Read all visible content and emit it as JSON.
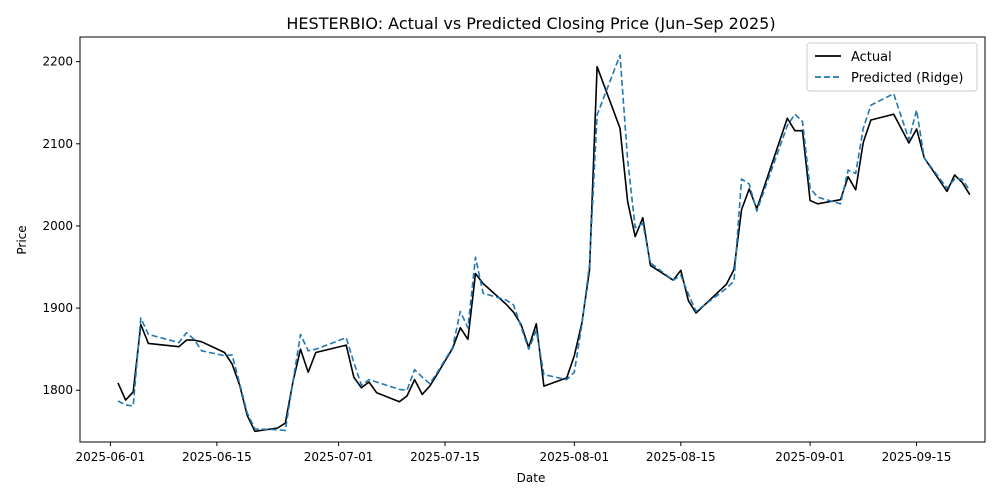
{
  "chart_data": {
    "type": "line",
    "title": "HESTERBIO: Actual vs Predicted Closing Price (Jun–Sep 2025)",
    "xlabel": "Date",
    "ylabel": "Price",
    "xlim": [
      "2025-05-28",
      "2025-09-24"
    ],
    "ylim": [
      1737,
      2230
    ],
    "x_ticks": [
      "2025-06-01",
      "2025-06-15",
      "2025-07-01",
      "2025-07-15",
      "2025-08-01",
      "2025-08-15",
      "2025-09-01",
      "2025-09-15"
    ],
    "y_ticks": [
      1800,
      1900,
      2000,
      2100,
      2200
    ],
    "grid": false,
    "legend": {
      "position": "top-right",
      "entries": [
        "Actual",
        "Predicted (Ridge)"
      ]
    },
    "series": [
      {
        "name": "Actual",
        "color": "#000000",
        "style": "solid",
        "points": [
          [
            "2025-06-02",
            1809
          ],
          [
            "2025-06-03",
            1788
          ],
          [
            "2025-06-04",
            1798
          ],
          [
            "2025-06-05",
            1880
          ],
          [
            "2025-06-06",
            1857
          ],
          [
            "2025-06-10",
            1853
          ],
          [
            "2025-06-11",
            1861
          ],
          [
            "2025-06-12",
            1861
          ],
          [
            "2025-06-13",
            1859
          ],
          [
            "2025-06-16",
            1846
          ],
          [
            "2025-06-17",
            1832
          ],
          [
            "2025-06-18",
            1806
          ],
          [
            "2025-06-19",
            1769
          ],
          [
            "2025-06-20",
            1750
          ],
          [
            "2025-06-23",
            1754
          ],
          [
            "2025-06-24",
            1760
          ],
          [
            "2025-06-25",
            1810
          ],
          [
            "2025-06-26",
            1850
          ],
          [
            "2025-06-27",
            1822
          ],
          [
            "2025-06-28",
            1846
          ],
          [
            "2025-07-02",
            1855
          ],
          [
            "2025-07-03",
            1816
          ],
          [
            "2025-07-04",
            1803
          ],
          [
            "2025-07-05",
            1810
          ],
          [
            "2025-07-06",
            1797
          ],
          [
            "2025-07-09",
            1786
          ],
          [
            "2025-07-10",
            1793
          ],
          [
            "2025-07-11",
            1813
          ],
          [
            "2025-07-12",
            1795
          ],
          [
            "2025-07-13",
            1805
          ],
          [
            "2025-07-14",
            1820
          ],
          [
            "2025-07-16",
            1851
          ],
          [
            "2025-07-17",
            1876
          ],
          [
            "2025-07-18",
            1862
          ],
          [
            "2025-07-19",
            1942
          ],
          [
            "2025-07-20",
            1930
          ],
          [
            "2025-07-23",
            1905
          ],
          [
            "2025-07-24",
            1895
          ],
          [
            "2025-07-25",
            1880
          ],
          [
            "2025-07-26",
            1852
          ],
          [
            "2025-07-27",
            1881
          ],
          [
            "2025-07-28",
            1805
          ],
          [
            "2025-07-31",
            1815
          ],
          [
            "2025-08-01",
            1842
          ],
          [
            "2025-08-02",
            1882
          ],
          [
            "2025-08-03",
            1946
          ],
          [
            "2025-08-04",
            2194
          ],
          [
            "2025-08-07",
            2119
          ],
          [
            "2025-08-08",
            2030
          ],
          [
            "2025-08-09",
            1987
          ],
          [
            "2025-08-10",
            2010
          ],
          [
            "2025-08-11",
            1952
          ],
          [
            "2025-08-14",
            1934
          ],
          [
            "2025-08-15",
            1946
          ],
          [
            "2025-08-16",
            1909
          ],
          [
            "2025-08-17",
            1894
          ],
          [
            "2025-08-21",
            1929
          ],
          [
            "2025-08-22",
            1947
          ],
          [
            "2025-08-23",
            2020
          ],
          [
            "2025-08-24",
            2045
          ],
          [
            "2025-08-25",
            2021
          ],
          [
            "2025-08-29",
            2131
          ],
          [
            "2025-08-30",
            2116
          ],
          [
            "2025-08-31",
            2116
          ],
          [
            "2025-09-01",
            2031
          ],
          [
            "2025-09-02",
            2027
          ],
          [
            "2025-09-05",
            2032
          ],
          [
            "2025-09-06",
            2060
          ],
          [
            "2025-09-07",
            2044
          ],
          [
            "2025-09-08",
            2102
          ],
          [
            "2025-09-09",
            2129
          ],
          [
            "2025-09-12",
            2136
          ],
          [
            "2025-09-14",
            2101
          ],
          [
            "2025-09-15",
            2118
          ],
          [
            "2025-09-16",
            2083
          ],
          [
            "2025-09-19",
            2042
          ],
          [
            "2025-09-20",
            2062
          ],
          [
            "2025-09-21",
            2053
          ],
          [
            "2025-09-22",
            2038
          ]
        ]
      },
      {
        "name": "Predicted (Ridge)",
        "color": "#1f77b4",
        "style": "dashed",
        "points": [
          [
            "2025-06-02",
            1787
          ],
          [
            "2025-06-03",
            1782
          ],
          [
            "2025-06-04",
            1781
          ],
          [
            "2025-06-05",
            1888
          ],
          [
            "2025-06-06",
            1868
          ],
          [
            "2025-06-10",
            1858
          ],
          [
            "2025-06-11",
            1870
          ],
          [
            "2025-06-12",
            1862
          ],
          [
            "2025-06-13",
            1848
          ],
          [
            "2025-06-16",
            1842
          ],
          [
            "2025-06-17",
            1843
          ],
          [
            "2025-06-18",
            1808
          ],
          [
            "2025-06-19",
            1772
          ],
          [
            "2025-06-20",
            1753
          ],
          [
            "2025-06-23",
            1752
          ],
          [
            "2025-06-24",
            1751
          ],
          [
            "2025-06-25",
            1810
          ],
          [
            "2025-06-26",
            1868
          ],
          [
            "2025-06-27",
            1848
          ],
          [
            "2025-06-28",
            1850
          ],
          [
            "2025-07-02",
            1864
          ],
          [
            "2025-07-03",
            1834
          ],
          [
            "2025-07-04",
            1806
          ],
          [
            "2025-07-05",
            1813
          ],
          [
            "2025-07-06",
            1810
          ],
          [
            "2025-07-09",
            1801
          ],
          [
            "2025-07-10",
            1800
          ],
          [
            "2025-07-11",
            1825
          ],
          [
            "2025-07-12",
            1816
          ],
          [
            "2025-07-13",
            1808
          ],
          [
            "2025-07-14",
            1822
          ],
          [
            "2025-07-16",
            1852
          ],
          [
            "2025-07-17",
            1896
          ],
          [
            "2025-07-18",
            1876
          ],
          [
            "2025-07-19",
            1962
          ],
          [
            "2025-07-20",
            1918
          ],
          [
            "2025-07-23",
            1910
          ],
          [
            "2025-07-24",
            1904
          ],
          [
            "2025-07-25",
            1877
          ],
          [
            "2025-07-26",
            1850
          ],
          [
            "2025-07-27",
            1873
          ],
          [
            "2025-07-28",
            1819
          ],
          [
            "2025-07-31",
            1813
          ],
          [
            "2025-08-01",
            1822
          ],
          [
            "2025-08-02",
            1880
          ],
          [
            "2025-08-03",
            1953
          ],
          [
            "2025-08-04",
            2135
          ],
          [
            "2025-08-07",
            2208
          ],
          [
            "2025-08-08",
            2081
          ],
          [
            "2025-08-09",
            1998
          ],
          [
            "2025-08-10",
            2003
          ],
          [
            "2025-08-11",
            1955
          ],
          [
            "2025-08-14",
            1934
          ],
          [
            "2025-08-15",
            1940
          ],
          [
            "2025-08-16",
            1917
          ],
          [
            "2025-08-17",
            1896
          ],
          [
            "2025-08-21",
            1924
          ],
          [
            "2025-08-22",
            1933
          ],
          [
            "2025-08-23",
            2057
          ],
          [
            "2025-08-24",
            2051
          ],
          [
            "2025-08-25",
            2018
          ],
          [
            "2025-08-29",
            2122
          ],
          [
            "2025-08-30",
            2136
          ],
          [
            "2025-08-31",
            2127
          ],
          [
            "2025-09-01",
            2046
          ],
          [
            "2025-09-02",
            2035
          ],
          [
            "2025-09-05",
            2027
          ],
          [
            "2025-09-06",
            2068
          ],
          [
            "2025-09-07",
            2064
          ],
          [
            "2025-09-08",
            2119
          ],
          [
            "2025-09-09",
            2147
          ],
          [
            "2025-09-12",
            2161
          ],
          [
            "2025-09-14",
            2105
          ],
          [
            "2025-09-15",
            2141
          ],
          [
            "2025-09-16",
            2083
          ],
          [
            "2025-09-19",
            2046
          ],
          [
            "2025-09-20",
            2057
          ],
          [
            "2025-09-21",
            2057
          ],
          [
            "2025-09-22",
            2043
          ]
        ]
      }
    ]
  }
}
